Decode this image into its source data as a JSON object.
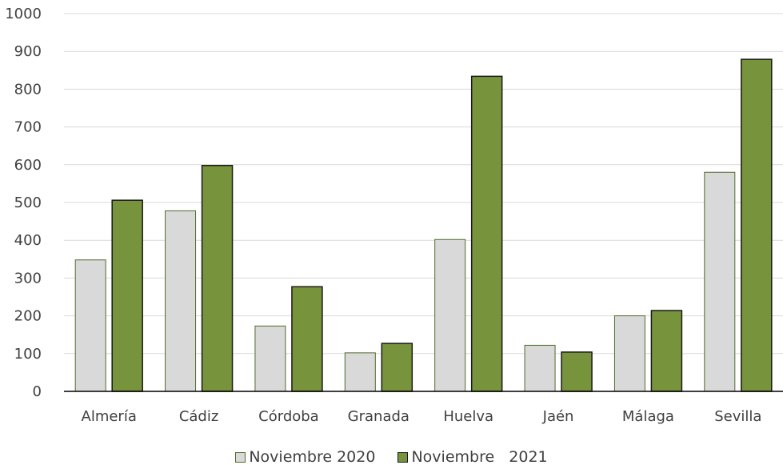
{
  "chart_data": {
    "type": "bar",
    "categories": [
      "Almería",
      "Cádiz",
      "Córdoba",
      "Granada",
      "Huelva",
      "Jaén",
      "Málaga",
      "Sevilla"
    ],
    "series": [
      {
        "name": "Noviembre 2020",
        "values": [
          348,
          478,
          173,
          102,
          402,
          122,
          200,
          580
        ],
        "color": "#d9d9d9"
      },
      {
        "name": "Noviembre   2021",
        "values": [
          506,
          598,
          277,
          127,
          834,
          104,
          214,
          879
        ],
        "color": "#77933c"
      }
    ],
    "ylim": [
      0,
      1000
    ],
    "yticks": [
      "0",
      "100",
      "200",
      "300",
      "400",
      "500",
      "600",
      "700",
      "800",
      "900",
      "1000"
    ],
    "grid": true,
    "legend_position": "bottom"
  }
}
